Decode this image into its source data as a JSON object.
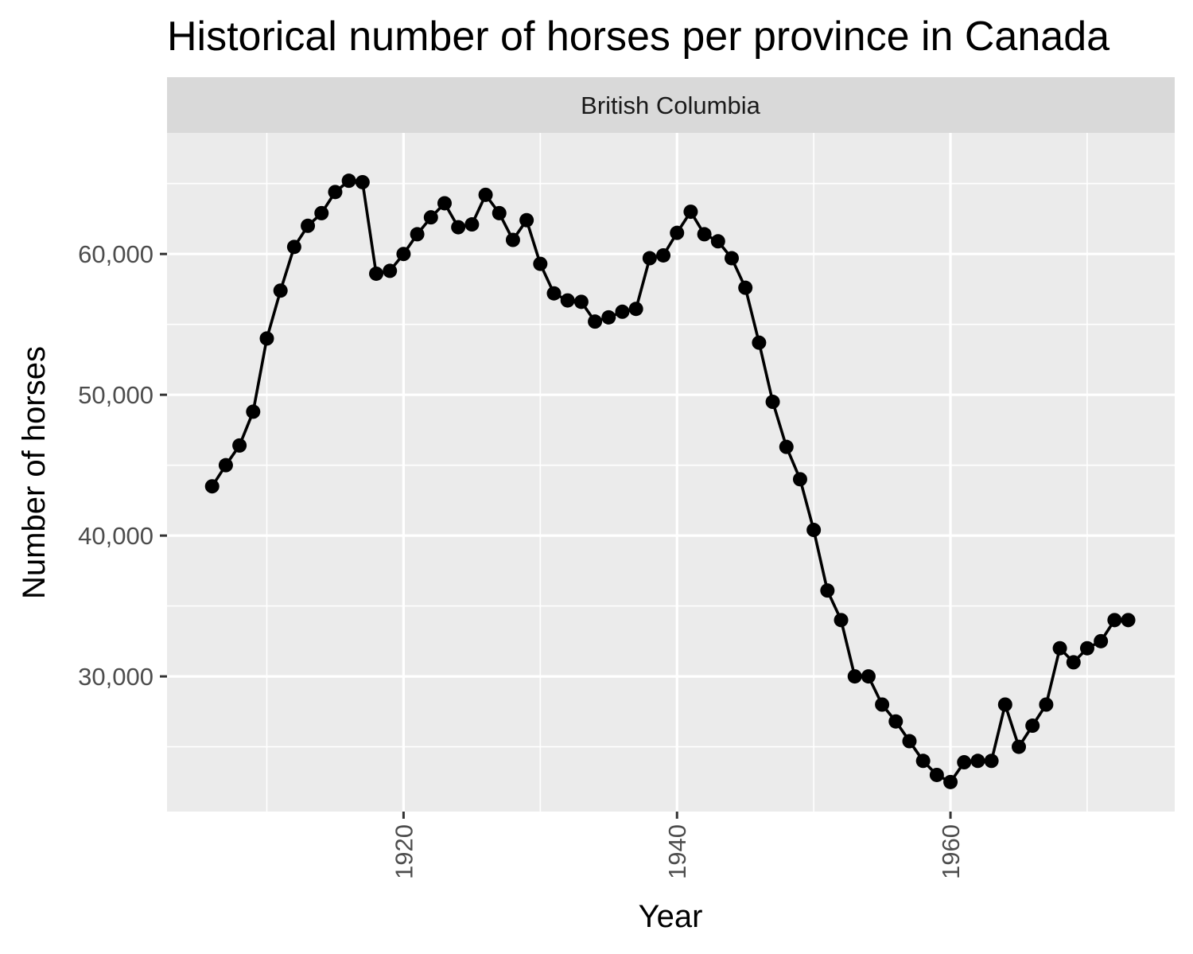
{
  "chart_data": {
    "type": "line",
    "title": "Historical number of horses per province in Canada",
    "facet": "British Columbia",
    "xlabel": "Year",
    "ylabel": "Number of horses",
    "x_ticks": [
      1920,
      1940,
      1960
    ],
    "y_ticks": [
      30000,
      40000,
      50000,
      60000
    ],
    "y_tick_labels": [
      "30,000",
      "40,000",
      "50,000",
      "60,000"
    ],
    "xlim": [
      1902.7,
      1976.4
    ],
    "ylim": [
      20400,
      68600
    ],
    "grid": true,
    "colors": {
      "panel": "#ebebeb",
      "strip": "#d9d9d9",
      "grid": "#ffffff",
      "series": "#000000"
    },
    "series": [
      {
        "x": [
          1906,
          1907,
          1908,
          1909,
          1910,
          1911,
          1912,
          1913,
          1914,
          1915,
          1916,
          1917,
          1918,
          1919,
          1920,
          1921,
          1922,
          1923,
          1924,
          1925,
          1926,
          1927,
          1928,
          1929,
          1930,
          1931,
          1932,
          1933,
          1934,
          1935,
          1936,
          1937,
          1938,
          1939,
          1940,
          1941,
          1942,
          1943,
          1944,
          1945,
          1946,
          1947,
          1948,
          1949,
          1950,
          1951,
          1952,
          1953,
          1954,
          1955,
          1956,
          1957,
          1958,
          1959,
          1960,
          1961,
          1962,
          1963,
          1964,
          1965,
          1966,
          1967,
          1968,
          1969,
          1970,
          1971,
          1972,
          1973
        ],
        "y": [
          43500,
          45000,
          46400,
          48800,
          54000,
          57400,
          60500,
          62000,
          62900,
          64400,
          65200,
          65100,
          58600,
          58800,
          60000,
          61400,
          62600,
          63600,
          61900,
          62100,
          64200,
          62900,
          61000,
          62400,
          59300,
          57200,
          56700,
          56600,
          55200,
          55500,
          55900,
          56100,
          59700,
          59900,
          61500,
          63000,
          61400,
          60900,
          59700,
          57600,
          53700,
          49500,
          46300,
          44000,
          40400,
          36100,
          34000,
          30000,
          30000,
          28000,
          26800,
          25400,
          24000,
          23000,
          22500,
          23900,
          24000,
          24000,
          28000,
          25000,
          26500,
          28000,
          32000,
          31000,
          32000,
          32500,
          34000,
          34000
        ]
      }
    ]
  }
}
